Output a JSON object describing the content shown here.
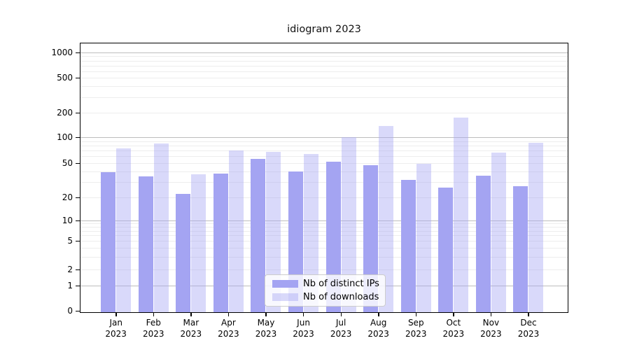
{
  "title": "idiogram 2023",
  "colors": {
    "ips": "#a4a4f2",
    "downloads": "rgba(164,164,242,0.42)",
    "downloads_effective": "#dcdcf9",
    "grid_major": "#bdbdbd",
    "grid_minor": "#ededed",
    "axis": "#000000",
    "legend_border": "#cccccc"
  },
  "legend": {
    "items": [
      {
        "key": "ips",
        "label": "Nb of distinct IPs"
      },
      {
        "key": "downloads",
        "label": "Nb of downloads"
      }
    ]
  },
  "y_axis": {
    "ticks": [
      0,
      1,
      2,
      5,
      10,
      20,
      50,
      100,
      200,
      500,
      1000
    ],
    "tick_labels": [
      "0",
      "1",
      "2",
      "5",
      "10",
      "20",
      "50",
      "100",
      "200",
      "500",
      "1000"
    ]
  },
  "x_axis": {
    "months": [
      "Jan",
      "Feb",
      "Mar",
      "Apr",
      "May",
      "Jun",
      "Jul",
      "Aug",
      "Sep",
      "Oct",
      "Nov",
      "Dec"
    ],
    "year": "2023"
  },
  "chart_data": {
    "type": "bar",
    "title": "idiogram 2023",
    "categories": [
      "Jan 2023",
      "Feb 2023",
      "Mar 2023",
      "Apr 2023",
      "May 2023",
      "Jun 2023",
      "Jul 2023",
      "Aug 2023",
      "Sep 2023",
      "Oct 2023",
      "Nov 2023",
      "Dec 2023"
    ],
    "series": [
      {
        "name": "Nb of distinct IPs",
        "values": [
          39,
          35,
          22,
          38,
          56,
          40,
          52,
          47,
          32,
          26,
          36,
          27
        ]
      },
      {
        "name": "Nb of downloads",
        "values": [
          74,
          85,
          37,
          70,
          67,
          64,
          100,
          138,
          49,
          175,
          66,
          86
        ]
      }
    ],
    "xlabel": "",
    "ylabel": "",
    "yscale": "log-like (symlog with 0 baseline)",
    "ylim": [
      0,
      1000
    ],
    "y_ticks": [
      0,
      1,
      2,
      5,
      10,
      20,
      50,
      100,
      200,
      500,
      1000
    ],
    "grid": "horizontal minor + darker decade lines",
    "legend_position": "inside bottom-center"
  }
}
